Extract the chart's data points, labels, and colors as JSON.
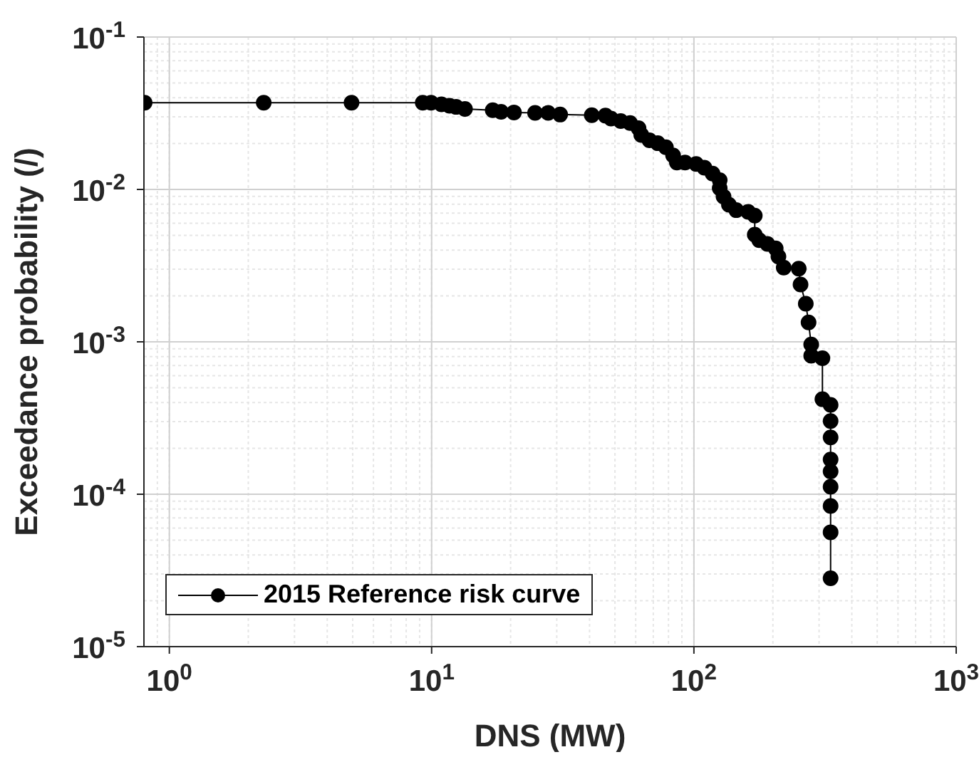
{
  "chart_data": {
    "type": "line",
    "xlabel": "DNS (MW)",
    "ylabel": "Exceedance probability (/)",
    "log": "xy",
    "grid": true,
    "legend": "bottom left",
    "marker": "circle",
    "line_style": "solid",
    "xlim": [
      0.8,
      1000
    ],
    "xticks": [
      {
        "value": 1,
        "label": "10$^{0}$"
      },
      {
        "value": 10,
        "label": "10$^{1}$"
      },
      {
        "value": 100,
        "label": "10$^{2}$"
      },
      {
        "value": 1000,
        "label": "10$^{3}$"
      }
    ],
    "ylim": [
      1e-05,
      0.1
    ],
    "yticks": [
      {
        "value": 1e-05,
        "label": "10$^{-5}$"
      },
      {
        "value": 0.0001,
        "label": "10$^{-4}$"
      },
      {
        "value": 0.001,
        "label": "10$^{-3}$"
      },
      {
        "value": 0.01,
        "label": "10$^{-2}$"
      },
      {
        "value": 0.1,
        "label": "10$^{-1}$"
      }
    ],
    "series": [
      {
        "name": "2015 Reference risk curve",
        "color": "#000000",
        "x": [
          0.805,
          2.29,
          4.95,
          9.25,
          9.95,
          10.9,
          11.7,
          12.4,
          13.4,
          17.1,
          18.4,
          20.6,
          24.8,
          27.8,
          30.9,
          40.8,
          46,
          48.3,
          52.6,
          57.1,
          61.5,
          63,
          67.7,
          72.8,
          78.2,
          83.3,
          86.1,
          92.5,
          102,
          109.6,
          117.8,
          125.4,
          125.4,
          129.7,
          136,
          145,
          161,
          170.6,
          170.6,
          177.4,
          190.6,
          205,
          210,
          220,
          251,
          255,
          267,
          273.6,
          280,
          280,
          309,
          309,
          332,
          332,
          332,
          332,
          332,
          332,
          332,
          332,
          332
        ],
        "values": [
          0.0371,
          0.0371,
          0.0371,
          0.0371,
          0.0371,
          0.0362,
          0.0354,
          0.0348,
          0.0337,
          0.0331,
          0.0323,
          0.032,
          0.0318,
          0.0318,
          0.031,
          0.0307,
          0.0305,
          0.0292,
          0.0281,
          0.0273,
          0.0252,
          0.0228,
          0.021,
          0.0201,
          0.0189,
          0.0167,
          0.015,
          0.015,
          0.0147,
          0.0139,
          0.0127,
          0.0115,
          0.0102,
          0.00898,
          0.00794,
          0.00731,
          0.00713,
          0.00673,
          0.00505,
          0.00465,
          0.00439,
          0.0041,
          0.00363,
          0.00307,
          0.00302,
          0.00238,
          0.00178,
          0.00134,
          0.00096,
          0.00081,
          0.00078,
          0.00042,
          0.000386,
          0.000302,
          0.000236,
          0.000169,
          0.000141,
          0.000112,
          8.38e-05,
          5.63e-05,
          2.81e-05
        ]
      }
    ]
  }
}
